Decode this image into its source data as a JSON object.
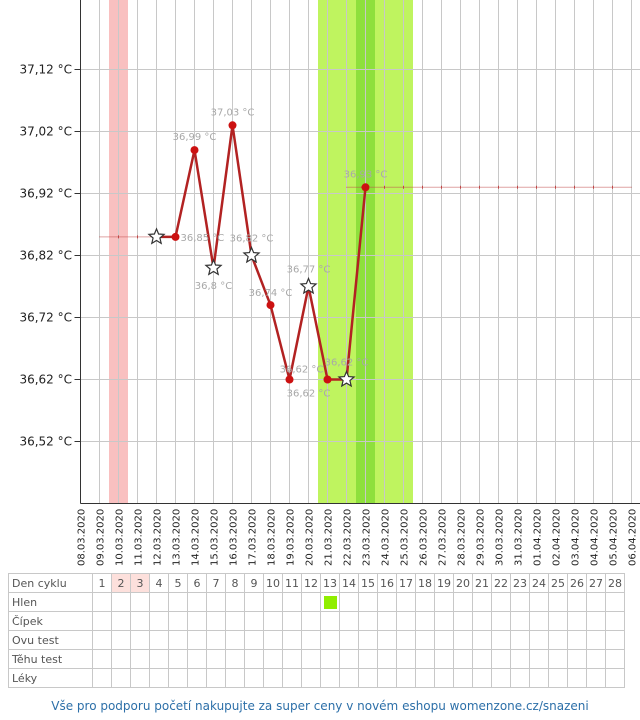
{
  "chart_data": {
    "type": "line",
    "title": "",
    "xlabel": "",
    "ylabel": "",
    "ylim": [
      36.42,
      37.22
    ],
    "y_ticks": [
      "36,52 °C",
      "36,62 °C",
      "36,72 °C",
      "36,82 °C",
      "36,92 °C",
      "37,02 °C",
      "37,12 °C"
    ],
    "y_tick_values": [
      36.52,
      36.62,
      36.72,
      36.82,
      36.92,
      37.02,
      37.12
    ],
    "x_categories": [
      "08.03.2020",
      "09.03.2020",
      "10.03.2020",
      "11.03.2020",
      "12.03.2020",
      "13.03.2020",
      "14.03.2020",
      "15.03.2020",
      "16.03.2020",
      "17.03.2020",
      "18.03.2020",
      "19.03.2020",
      "20.03.2020",
      "21.03.2020",
      "22.03.2020",
      "23.03.2020",
      "24.03.2020",
      "25.03.2020",
      "26.03.2020",
      "27.03.2020",
      "28.03.2020",
      "29.03.2020",
      "30.03.2020",
      "31.03.2020",
      "01.04.2020",
      "02.04.2020",
      "03.04.2020",
      "04.04.2020",
      "05.04.2020",
      "06.04.2020"
    ],
    "grid": true,
    "series": [
      {
        "color": "#b22222",
        "values": [
          {
            "date": "11.03.2020",
            "y": 36.85,
            "marker": "star",
            "label": ""
          },
          {
            "date": "12.03.2020",
            "y": 36.85,
            "marker": "dot",
            "label": "36,85 °C"
          },
          {
            "date": "13.03.2020",
            "y": 36.99,
            "marker": "dot",
            "label": "36,99 °C"
          },
          {
            "date": "14.03.2020",
            "y": 36.8,
            "marker": "star",
            "label": "36,8 °C"
          },
          {
            "date": "15.03.2020",
            "y": 37.03,
            "marker": "dot",
            "label": "37,03 °C"
          },
          {
            "date": "16.03.2020",
            "y": 36.82,
            "marker": "star",
            "label": "36,82 °C"
          },
          {
            "date": "17.03.2020",
            "y": 36.74,
            "marker": "dot",
            "label": "36,74 °C"
          },
          {
            "date": "18.03.2020",
            "y": 36.62,
            "marker": "dot",
            "label": "36,62 °C"
          },
          {
            "date": "19.03.2020",
            "y": 36.77,
            "marker": "star",
            "label": "36,77 °C"
          },
          {
            "date": "20.03.2020",
            "y": 36.62,
            "marker": "dot",
            "label": "36,62 °C"
          },
          {
            "date": "21.03.2020",
            "y": 36.62,
            "marker": "star",
            "label": "36,62 °C"
          },
          {
            "date": "22.03.2020",
            "y": 36.93,
            "marker": "dot",
            "label": "36,93 °C"
          }
        ]
      }
    ],
    "cover_line_before": {
      "from": "09.03.2020",
      "to": "11.03.2020",
      "y": 36.85
    },
    "cover_line_after": {
      "from": "22.03.2020",
      "to": "05.04.2020",
      "y": 36.93
    },
    "period_band": {
      "from": "09.03.2020",
      "to": "10.03.2020",
      "color": "#f9c0c0"
    },
    "fertile_band": {
      "from": "20.03.2020",
      "to": "25.03.2020",
      "color": "#bff45f"
    },
    "ovulation_band": {
      "from": "22.03.2020",
      "to": "23.03.2020",
      "color": "#8ee03c"
    },
    "colors": {
      "grid": "#c8c8c8",
      "axis": "#333333",
      "line": "#b22222",
      "marker": "#cc1111",
      "label": "#a8a8a8"
    }
  },
  "cycle_table": {
    "rows": [
      {
        "label": "Den cyklu",
        "cells": [
          "1",
          "2",
          "3",
          "4",
          "5",
          "6",
          "7",
          "8",
          "9",
          "10",
          "11",
          "12",
          "13",
          "14",
          "15",
          "16",
          "17",
          "18",
          "19",
          "20",
          "21",
          "22",
          "23",
          "24",
          "25",
          "26",
          "27",
          "28"
        ],
        "highlight": [
          1,
          2
        ]
      },
      {
        "label": "Hlen",
        "marks": [
          12
        ]
      },
      {
        "label": "Čípek",
        "marks": []
      },
      {
        "label": "Ovu test",
        "marks": []
      },
      {
        "label": "Těhu test",
        "marks": []
      },
      {
        "label": "Léky",
        "marks": []
      }
    ]
  },
  "footer": {
    "text": "Vše pro podporu početí nakupujte za super ceny v novém eshopu womenzone.cz/snazeni"
  }
}
